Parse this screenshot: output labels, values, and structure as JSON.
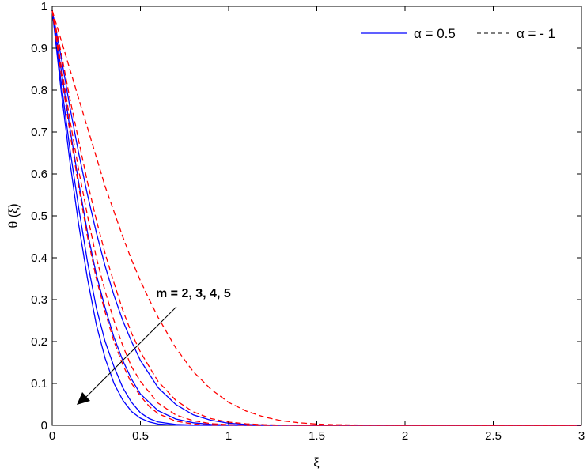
{
  "chart_data": {
    "type": "line",
    "title": "",
    "xlabel": "ξ",
    "ylabel": "θ (ξ)",
    "xlim": [
      0,
      3
    ],
    "ylim": [
      0,
      1
    ],
    "xticks": [
      "0",
      "0.5",
      "1",
      "1.5",
      "2",
      "2.5",
      "3"
    ],
    "yticks": [
      "0",
      "0.1",
      "0.2",
      "0.3",
      "0.4",
      "0.5",
      "0.6",
      "0.7",
      "0.8",
      "0.9",
      "1"
    ],
    "grid": false,
    "legend_position": "top-right",
    "legend": [
      {
        "label": "α = 0.5",
        "style": "solid",
        "color": "#0000ff"
      },
      {
        "label": "α = - 1",
        "style": "dashed",
        "color": "#ff0000"
      }
    ],
    "annotation": {
      "text": "m = 2, 3, 4, 5"
    },
    "series": [
      {
        "alpha": 0.5,
        "m": 2,
        "style": "solid",
        "color": "#0000ff",
        "x": [
          0,
          0.05,
          0.1,
          0.15,
          0.2,
          0.25,
          0.3,
          0.35,
          0.4,
          0.45,
          0.5,
          0.6,
          0.7,
          0.8,
          0.9,
          1.0,
          1.1,
          1.2,
          1.4,
          3
        ],
        "y": [
          0.99,
          0.88,
          0.76,
          0.65,
          0.55,
          0.46,
          0.38,
          0.31,
          0.25,
          0.2,
          0.155,
          0.09,
          0.05,
          0.025,
          0.012,
          0.005,
          0.002,
          0.001,
          0,
          0
        ]
      },
      {
        "alpha": 0.5,
        "m": 3,
        "style": "solid",
        "color": "#0000ff",
        "x": [
          0,
          0.05,
          0.1,
          0.15,
          0.2,
          0.25,
          0.3,
          0.35,
          0.4,
          0.45,
          0.5,
          0.6,
          0.7,
          0.8,
          0.9,
          1.0,
          1.1,
          3
        ],
        "y": [
          0.99,
          0.85,
          0.71,
          0.58,
          0.46,
          0.36,
          0.28,
          0.21,
          0.155,
          0.11,
          0.075,
          0.035,
          0.015,
          0.006,
          0.002,
          0.001,
          0,
          0
        ]
      },
      {
        "alpha": 0.5,
        "m": 4,
        "style": "solid",
        "color": "#0000ff",
        "x": [
          0,
          0.05,
          0.1,
          0.15,
          0.2,
          0.25,
          0.3,
          0.35,
          0.4,
          0.45,
          0.5,
          0.55,
          0.6,
          0.7,
          0.8,
          0.9,
          3
        ],
        "y": [
          0.99,
          0.82,
          0.66,
          0.52,
          0.39,
          0.28,
          0.2,
          0.14,
          0.09,
          0.055,
          0.03,
          0.016,
          0.008,
          0.002,
          0.0005,
          0,
          0
        ]
      },
      {
        "alpha": 0.5,
        "m": 5,
        "style": "solid",
        "color": "#0000ff",
        "x": [
          0,
          0.05,
          0.1,
          0.15,
          0.2,
          0.25,
          0.3,
          0.35,
          0.4,
          0.45,
          0.5,
          0.55,
          0.6,
          0.7,
          0.8,
          3
        ],
        "y": [
          0.99,
          0.8,
          0.63,
          0.48,
          0.35,
          0.24,
          0.16,
          0.1,
          0.06,
          0.033,
          0.017,
          0.008,
          0.003,
          0.0005,
          0,
          0
        ]
      },
      {
        "alpha": -1,
        "m": 2,
        "style": "dashed",
        "color": "#ff0000",
        "x": [
          0,
          0.05,
          0.1,
          0.15,
          0.2,
          0.25,
          0.3,
          0.35,
          0.4,
          0.45,
          0.5,
          0.55,
          0.6,
          0.7,
          0.8,
          0.9,
          1.0,
          1.1,
          1.2,
          1.3,
          1.4,
          1.5,
          1.6,
          1.8,
          2.0,
          3
        ],
        "y": [
          0.99,
          0.92,
          0.85,
          0.78,
          0.71,
          0.64,
          0.57,
          0.51,
          0.45,
          0.395,
          0.345,
          0.3,
          0.258,
          0.185,
          0.128,
          0.086,
          0.055,
          0.034,
          0.02,
          0.011,
          0.006,
          0.003,
          0.0015,
          0.0003,
          0,
          0
        ]
      },
      {
        "alpha": -1,
        "m": 3,
        "style": "dashed",
        "color": "#ff0000",
        "x": [
          0,
          0.05,
          0.1,
          0.15,
          0.2,
          0.25,
          0.3,
          0.35,
          0.4,
          0.45,
          0.5,
          0.6,
          0.7,
          0.8,
          0.9,
          1.0,
          1.1,
          1.2,
          1.3,
          1.4,
          3
        ],
        "y": [
          0.99,
          0.89,
          0.78,
          0.68,
          0.58,
          0.49,
          0.41,
          0.34,
          0.275,
          0.22,
          0.175,
          0.105,
          0.06,
          0.032,
          0.016,
          0.0075,
          0.0035,
          0.0015,
          0.0005,
          0,
          0
        ]
      },
      {
        "alpha": -1,
        "m": 4,
        "style": "dashed",
        "color": "#ff0000",
        "x": [
          0,
          0.05,
          0.1,
          0.15,
          0.2,
          0.25,
          0.3,
          0.35,
          0.4,
          0.45,
          0.5,
          0.6,
          0.7,
          0.8,
          0.9,
          1.0,
          1.1,
          3
        ],
        "y": [
          0.99,
          0.86,
          0.73,
          0.61,
          0.5,
          0.4,
          0.32,
          0.25,
          0.19,
          0.14,
          0.105,
          0.053,
          0.025,
          0.011,
          0.004,
          0.0015,
          0,
          0
        ]
      },
      {
        "alpha": -1,
        "m": 5,
        "style": "dashed",
        "color": "#ff0000",
        "x": [
          0,
          0.05,
          0.1,
          0.15,
          0.2,
          0.25,
          0.3,
          0.35,
          0.4,
          0.45,
          0.5,
          0.55,
          0.6,
          0.7,
          0.8,
          0.9,
          3
        ],
        "y": [
          0.99,
          0.84,
          0.7,
          0.57,
          0.45,
          0.35,
          0.27,
          0.2,
          0.145,
          0.1,
          0.07,
          0.045,
          0.028,
          0.01,
          0.003,
          0.0005,
          0
        ]
      }
    ]
  }
}
